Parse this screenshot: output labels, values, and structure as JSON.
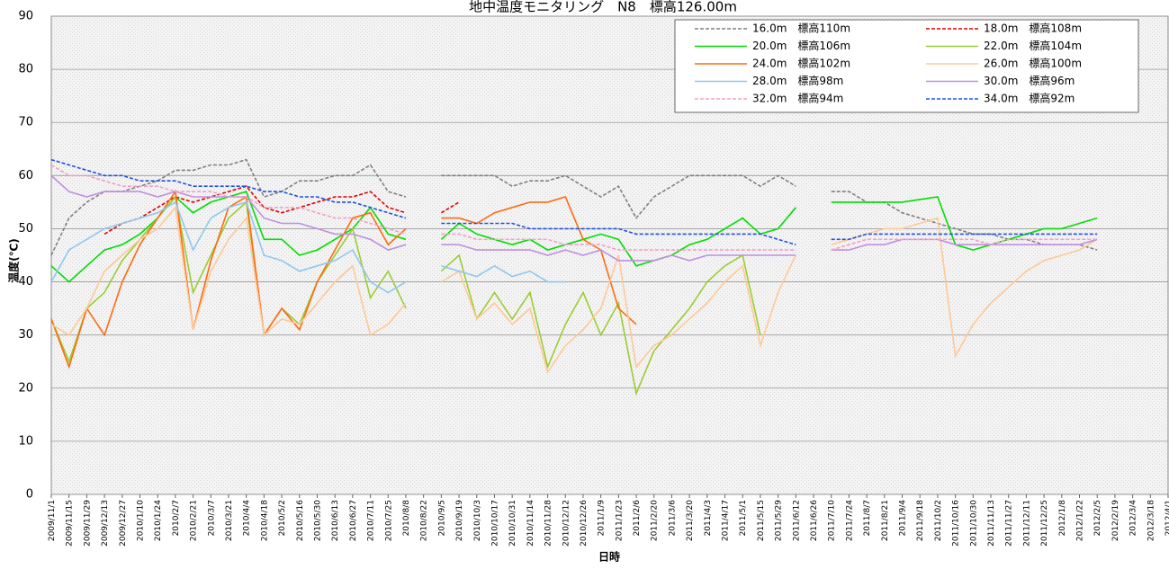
{
  "chart_data": {
    "type": "line",
    "title": "地中温度モニタリング　N8　標高126.00m",
    "x_label": "日時",
    "y_label": "温度(℃)",
    "ylim": [
      0,
      90
    ],
    "yticks": [
      0,
      10,
      20,
      30,
      40,
      50,
      60,
      70,
      80,
      90
    ],
    "grid": true,
    "legend": "upper right",
    "xlim": [
      "2009-11-01",
      "2012-04-01"
    ],
    "xticks": [
      {
        "value": "2009-11-01",
        "label": "2009/11/1"
      },
      {
        "value": "2009-11-15",
        "label": "2009/11/15"
      },
      {
        "value": "2009-11-29",
        "label": "2009/11/29"
      },
      {
        "value": "2009-12-13",
        "label": "2009/12/13"
      },
      {
        "value": "2009-12-27",
        "label": "2009/12/27"
      },
      {
        "value": "2010-01-10",
        "label": "2010/1/10"
      },
      {
        "value": "2010-01-24",
        "label": "2010/1/24"
      },
      {
        "value": "2010-02-07",
        "label": "2010/2/7"
      },
      {
        "value": "2010-02-21",
        "label": "2010/2/21"
      },
      {
        "value": "2010-03-07",
        "label": "2010/3/7"
      },
      {
        "value": "2010-03-21",
        "label": "2010/3/21"
      },
      {
        "value": "2010-04-04",
        "label": "2010/4/4"
      },
      {
        "value": "2010-04-18",
        "label": "2010/4/18"
      },
      {
        "value": "2010-05-02",
        "label": "2010/5/2"
      },
      {
        "value": "2010-05-16",
        "label": "2010/5/16"
      },
      {
        "value": "2010-05-30",
        "label": "2010/5/30"
      },
      {
        "value": "2010-06-13",
        "label": "2010/6/13"
      },
      {
        "value": "2010-06-27",
        "label": "2010/6/27"
      },
      {
        "value": "2010-07-11",
        "label": "2010/7/11"
      },
      {
        "value": "2010-07-25",
        "label": "2010/7/25"
      },
      {
        "value": "2010-08-08",
        "label": "2010/8/8"
      },
      {
        "value": "2010-08-22",
        "label": "2010/8/22"
      },
      {
        "value": "2010-09-05",
        "label": "2010/9/5"
      },
      {
        "value": "2010-09-19",
        "label": "2010/9/19"
      },
      {
        "value": "2010-10-03",
        "label": "2010/10/3"
      },
      {
        "value": "2010-10-17",
        "label": "2010/10/17"
      },
      {
        "value": "2010-10-31",
        "label": "2010/10/31"
      },
      {
        "value": "2010-11-14",
        "label": "2010/11/14"
      },
      {
        "value": "2010-11-28",
        "label": "2010/11/28"
      },
      {
        "value": "2010-12-12",
        "label": "2010/12/12"
      },
      {
        "value": "2010-12-26",
        "label": "2010/12/26"
      },
      {
        "value": "2011-01-09",
        "label": "2011/1/9"
      },
      {
        "value": "2011-01-23",
        "label": "2011/1/23"
      },
      {
        "value": "2011-02-06",
        "label": "2011/2/6"
      },
      {
        "value": "2011-02-20",
        "label": "2011/2/20"
      },
      {
        "value": "2011-03-06",
        "label": "2011/3/6"
      },
      {
        "value": "2011-03-20",
        "label": "2011/3/20"
      },
      {
        "value": "2011-04-03",
        "label": "2011/4/3"
      },
      {
        "value": "2011-04-17",
        "label": "2011/4/17"
      },
      {
        "value": "2011-05-01",
        "label": "2011/5/1"
      },
      {
        "value": "2011-05-15",
        "label": "2011/5/15"
      },
      {
        "value": "2011-05-29",
        "label": "2011/5/29"
      },
      {
        "value": "2011-06-12",
        "label": "2011/6/12"
      },
      {
        "value": "2011-06-26",
        "label": "2011/6/26"
      },
      {
        "value": "2011-07-10",
        "label": "2011/7/10"
      },
      {
        "value": "2011-07-24",
        "label": "2011/7/24"
      },
      {
        "value": "2011-08-07",
        "label": "2011/8/7"
      },
      {
        "value": "2011-08-21",
        "label": "2011/8/21"
      },
      {
        "value": "2011-09-04",
        "label": "2011/9/4"
      },
      {
        "value": "2011-09-18",
        "label": "2011/9/18"
      },
      {
        "value": "2011-10-02",
        "label": "2011/10/2"
      },
      {
        "value": "2011-10-16",
        "label": "2011/10/16"
      },
      {
        "value": "2011-10-30",
        "label": "2011/10/30"
      },
      {
        "value": "2011-11-13",
        "label": "2011/11/13"
      },
      {
        "value": "2011-11-27",
        "label": "2011/11/27"
      },
      {
        "value": "2011-12-11",
        "label": "2011/12/11"
      },
      {
        "value": "2011-12-25",
        "label": "2011/12/25"
      },
      {
        "value": "2012-01-08",
        "label": "2012/1/8"
      },
      {
        "value": "2012-01-22",
        "label": "2012/1/22"
      },
      {
        "value": "2012-02-05",
        "label": "2012/2/5"
      },
      {
        "value": "2012-02-19",
        "label": "2012/2/19"
      },
      {
        "value": "2012-03-04",
        "label": "2012/3/4"
      },
      {
        "value": "2012-03-18",
        "label": "2012/3/18"
      },
      {
        "value": "2012-04-01",
        "label": "2012/4/1"
      }
    ],
    "x": [
      "2009-11-01",
      "2009-11-15",
      "2009-11-29",
      "2009-12-13",
      "2009-12-27",
      "2010-01-10",
      "2010-01-24",
      "2010-02-07",
      "2010-02-21",
      "2010-03-07",
      "2010-03-21",
      "2010-04-04",
      "2010-04-18",
      "2010-05-02",
      "2010-05-16",
      "2010-05-30",
      "2010-06-13",
      "2010-06-27",
      "2010-07-11",
      "2010-07-25",
      "2010-08-08",
      "2010-08-22",
      "2010-09-05",
      "2010-09-19",
      "2010-10-03",
      "2010-10-17",
      "2010-10-31",
      "2010-11-14",
      "2010-11-28",
      "2010-12-12",
      "2010-12-26",
      "2011-01-09",
      "2011-01-23",
      "2011-02-06",
      "2011-02-20",
      "2011-03-06",
      "2011-03-20",
      "2011-04-03",
      "2011-04-17",
      "2011-05-01",
      "2011-05-15",
      "2011-05-29",
      "2011-06-12",
      "2011-06-26",
      "2011-07-10",
      "2011-07-24",
      "2011-08-07",
      "2011-08-21",
      "2011-09-04",
      "2011-09-18",
      "2011-10-02",
      "2011-10-16",
      "2011-10-30",
      "2011-11-13",
      "2011-11-27",
      "2011-12-11",
      "2011-12-25",
      "2012-01-08",
      "2012-01-22",
      "2012-02-05"
    ],
    "series": [
      {
        "name": "16.0m　標高110m",
        "color": "#808080",
        "dashed": true,
        "values": [
          45,
          52,
          55,
          57,
          57,
          58,
          59,
          61,
          61,
          62,
          62,
          63,
          56,
          57,
          59,
          59,
          60,
          60,
          62,
          57,
          56,
          null,
          60,
          60,
          60,
          60,
          58,
          59,
          59,
          60,
          58,
          56,
          58,
          52,
          56,
          58,
          60,
          60,
          60,
          60,
          58,
          60,
          58,
          null,
          57,
          57,
          55,
          55,
          53,
          52,
          51,
          50,
          49,
          49,
          48,
          48,
          47,
          47,
          47,
          46
        ]
      },
      {
        "name": "18.0m　標高108m",
        "color": "#e00000",
        "dashed": true,
        "values": [
          null,
          null,
          null,
          49,
          51,
          52,
          54,
          56,
          55,
          56,
          57,
          58,
          54,
          53,
          54,
          55,
          56,
          56,
          57,
          54,
          53,
          null,
          53,
          55,
          null,
          null,
          null,
          null,
          null,
          null,
          null,
          null,
          null,
          null,
          null,
          null,
          null,
          null,
          null,
          null,
          null,
          null,
          null,
          null,
          null,
          null,
          null,
          null,
          null,
          null,
          null,
          null,
          null,
          null,
          null,
          null,
          null,
          null,
          null,
          null
        ]
      },
      {
        "name": "20.0m　標高106m",
        "color": "#00dd00",
        "dashed": false,
        "values": [
          43,
          40,
          43,
          46,
          47,
          49,
          52,
          56,
          53,
          55,
          56,
          57,
          48,
          48,
          45,
          46,
          48,
          50,
          54,
          49,
          48,
          null,
          48,
          51,
          49,
          48,
          47,
          48,
          46,
          47,
          48,
          49,
          48,
          43,
          44,
          45,
          47,
          48,
          50,
          52,
          49,
          50,
          54,
          null,
          55,
          55,
          55,
          55,
          55,
          55.5,
          56,
          47,
          46,
          47,
          48,
          49,
          50,
          50,
          51,
          52
        ]
      },
      {
        "name": "22.0m　標高104m",
        "color": "#9acd32",
        "dashed": false,
        "values": [
          33,
          25,
          35,
          38,
          44,
          48,
          52,
          56,
          38,
          45,
          52,
          55,
          30,
          35,
          32,
          40,
          45,
          50,
          37,
          42,
          35,
          null,
          42,
          45,
          33,
          38,
          33,
          38,
          24,
          32,
          38,
          30,
          36,
          19,
          27,
          31,
          35,
          40,
          43,
          45,
          30,
          null,
          null,
          null,
          null,
          null,
          null,
          null,
          null,
          null,
          null,
          null,
          null,
          null,
          null,
          null,
          null,
          null,
          null,
          null
        ]
      },
      {
        "name": "24.0m　標高102m",
        "color": "#ff6a10",
        "dashed": false,
        "values": [
          33,
          24,
          35,
          30,
          40,
          47,
          52,
          57,
          31,
          44,
          54,
          56,
          30,
          35,
          31,
          40,
          46,
          52,
          53,
          47,
          50,
          null,
          52,
          52,
          51,
          53,
          54,
          55,
          55,
          56,
          48,
          46,
          35,
          32,
          null,
          null,
          null,
          null,
          null,
          null,
          null,
          null,
          null,
          null,
          null,
          null,
          null,
          null,
          null,
          null,
          null,
          null,
          null,
          null,
          null,
          null,
          null,
          null,
          null,
          null
        ]
      },
      {
        "name": "26.0m　標高100m",
        "color": "#ffc896",
        "dashed": false,
        "values": [
          32,
          30,
          35,
          42,
          45,
          48,
          50,
          54,
          31,
          42,
          48,
          52,
          30,
          33,
          32,
          36,
          40,
          43,
          30,
          32,
          36,
          null,
          40,
          42,
          33,
          36,
          32,
          35,
          23,
          28,
          31,
          35,
          45,
          24,
          28,
          30,
          33,
          36,
          40,
          43,
          28,
          38,
          45,
          null,
          47,
          48,
          49,
          50,
          50,
          51,
          52,
          26,
          32,
          36,
          39,
          42,
          44,
          45,
          46,
          48
        ]
      },
      {
        "name": "28.0m　標高98m",
        "color": "#8fc8f0",
        "dashed": false,
        "values": [
          40,
          46,
          48,
          50,
          51,
          52,
          53,
          55,
          46,
          52,
          54,
          55,
          45,
          44,
          42,
          43,
          44,
          46,
          40,
          38,
          40,
          null,
          43,
          42,
          41,
          43,
          41,
          42,
          40,
          40,
          null,
          null,
          null,
          null,
          null,
          null,
          null,
          null,
          null,
          null,
          null,
          null,
          null,
          null,
          null,
          null,
          null,
          null,
          null,
          null,
          null,
          null,
          null,
          null,
          null,
          null,
          null,
          null,
          null,
          null
        ]
      },
      {
        "name": "30.0m　標高96m",
        "color": "#c08fe0",
        "dashed": false,
        "values": [
          60,
          57,
          56,
          57,
          57,
          57,
          56,
          57,
          56,
          56,
          56,
          56,
          52,
          51,
          51,
          50,
          49,
          49,
          48,
          46,
          47,
          null,
          47,
          47,
          46,
          46,
          46,
          46,
          45,
          46,
          45,
          46,
          44,
          44,
          44,
          45,
          44,
          45,
          45,
          45,
          45,
          45,
          45,
          null,
          46,
          46,
          47,
          47,
          48,
          48,
          48,
          47,
          47,
          47,
          47,
          47,
          47,
          47,
          47,
          48
        ]
      },
      {
        "name": "32.0m　標高94m",
        "color": "#f2a0c8",
        "dashed": true,
        "values": [
          62,
          60,
          60,
          59,
          58,
          58,
          58,
          57,
          57,
          57,
          56,
          56,
          54,
          54,
          54,
          53,
          52,
          52,
          51,
          50,
          49,
          null,
          49,
          49,
          48,
          48,
          48,
          48,
          48,
          47,
          47,
          47,
          46,
          46,
          46,
          46,
          46,
          46,
          46,
          46,
          46,
          46,
          46,
          null,
          46,
          47,
          48,
          48,
          48,
          48,
          48,
          48,
          48,
          47,
          48,
          48,
          48,
          48,
          48,
          48
        ]
      },
      {
        "name": "34.0m　標高92m",
        "color": "#2050e0",
        "dashed": true,
        "values": [
          63,
          62,
          61,
          60,
          60,
          59,
          59,
          59,
          58,
          58,
          58,
          58,
          57,
          57,
          56,
          56,
          55,
          55,
          54,
          53,
          52,
          null,
          51,
          51,
          51,
          51,
          51,
          50,
          50,
          50,
          50,
          50,
          50,
          49,
          49,
          49,
          49,
          49,
          49,
          49,
          49,
          48,
          47,
          null,
          48,
          48,
          49,
          49,
          49,
          49,
          49,
          49,
          49,
          49,
          49,
          49,
          49,
          49,
          49,
          49
        ]
      }
    ]
  }
}
